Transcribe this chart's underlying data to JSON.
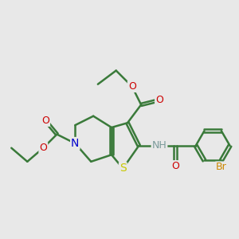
{
  "bg_color": "#e8e8e8",
  "bond_color": "#3a7a3a",
  "bond_width": 1.8,
  "atom_colors": {
    "S": "#c8c800",
    "N": "#0000cc",
    "O": "#cc0000",
    "Br": "#cc8800",
    "H": "#7a9a9a",
    "C": "#3a7a3a"
  },
  "font_size": 9,
  "fig_width": 3.0,
  "fig_height": 3.0,
  "dpi": 100
}
